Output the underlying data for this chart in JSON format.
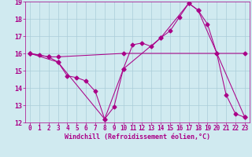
{
  "xlabel": "Windchill (Refroidissement éolien,°C)",
  "background_color": "#d0eaf0",
  "grid_color": "#aaccd8",
  "line_color": "#aa0088",
  "xlim": [
    -0.5,
    23.5
  ],
  "ylim": [
    12,
    19
  ],
  "xticks": [
    0,
    1,
    2,
    3,
    4,
    5,
    6,
    7,
    8,
    9,
    10,
    11,
    12,
    13,
    14,
    15,
    16,
    17,
    18,
    19,
    20,
    21,
    22,
    23
  ],
  "yticks": [
    12,
    13,
    14,
    15,
    16,
    17,
    18,
    19
  ],
  "series1_x": [
    0,
    1,
    2,
    3,
    4,
    5,
    6,
    7,
    8,
    9,
    10,
    11,
    12,
    13,
    14,
    15,
    16,
    17,
    18,
    19,
    20,
    21,
    22,
    23
  ],
  "series1_y": [
    16.0,
    15.9,
    15.8,
    15.5,
    14.7,
    14.6,
    14.4,
    13.8,
    12.2,
    12.9,
    15.1,
    16.5,
    16.6,
    16.4,
    16.9,
    17.3,
    18.1,
    18.9,
    18.5,
    17.7,
    16.0,
    13.6,
    12.5,
    12.3
  ],
  "series2_x": [
    0,
    2,
    3,
    10,
    20,
    23
  ],
  "series2_y": [
    16.0,
    15.8,
    15.8,
    16.0,
    16.0,
    16.0
  ],
  "series3_x": [
    0,
    3,
    8,
    10,
    14,
    17,
    18,
    23
  ],
  "series3_y": [
    16.0,
    15.5,
    12.2,
    15.1,
    16.9,
    18.9,
    18.5,
    12.3
  ],
  "marker": "D",
  "markersize": 2.5,
  "linewidth": 0.75,
  "tick_fontsize": 5.5,
  "xlabel_fontsize": 6.0
}
